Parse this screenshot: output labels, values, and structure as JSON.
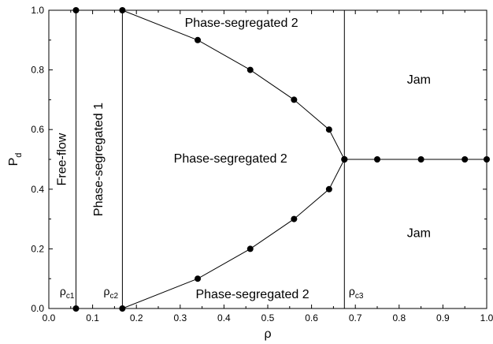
{
  "chart_data": {
    "type": "scatter",
    "xlabel": "ρ",
    "ylabel": {
      "main": "P",
      "sub": "d"
    },
    "xlim": [
      0.0,
      1.0
    ],
    "ylim": [
      0.0,
      1.0
    ],
    "x_ticks": [
      "0.0",
      "0.1",
      "0.2",
      "0.3",
      "0.4",
      "0.5",
      "0.6",
      "0.7",
      "0.8",
      "0.9",
      "1.0"
    ],
    "y_ticks": [
      "0.0",
      "0.2",
      "0.4",
      "0.6",
      "0.8",
      "1.0"
    ],
    "grid": false,
    "vertical_lines": [
      0.062,
      0.168,
      0.675
    ],
    "critical_labels": [
      {
        "main": "ρ",
        "sub": "c1",
        "x": 0.025,
        "y": 0.045
      },
      {
        "main": "ρ",
        "sub": "c2",
        "x": 0.125,
        "y": 0.045
      },
      {
        "main": "ρ",
        "sub": "c3",
        "x": 0.685,
        "y": 0.045
      }
    ],
    "series": [
      {
        "points": [
          [
            0.062,
            1.0
          ],
          [
            0.168,
            1.0
          ],
          [
            0.34,
            0.9
          ],
          [
            0.46,
            0.8
          ],
          [
            0.56,
            0.7
          ],
          [
            0.64,
            0.6
          ],
          [
            0.675,
            0.5
          ]
        ]
      },
      {
        "points": [
          [
            0.062,
            0.0
          ],
          [
            0.168,
            0.0
          ],
          [
            0.34,
            0.1
          ],
          [
            0.46,
            0.2
          ],
          [
            0.56,
            0.3
          ],
          [
            0.64,
            0.4
          ],
          [
            0.675,
            0.5
          ]
        ]
      },
      {
        "points": [
          [
            0.675,
            0.5
          ],
          [
            0.75,
            0.5
          ],
          [
            0.85,
            0.5
          ],
          [
            0.95,
            0.5
          ],
          [
            1.0,
            0.5
          ]
        ]
      }
    ],
    "region_labels": [
      {
        "text": "Free-flow",
        "x": 0.031,
        "y": 0.5,
        "rotate": true
      },
      {
        "text": "Phase-segregated 1",
        "x": 0.115,
        "y": 0.5,
        "rotate": true
      },
      {
        "text": "Phase-segregated 2",
        "x": 0.415,
        "y": 0.5,
        "rotate": false
      },
      {
        "text": "Phase-segregated 2",
        "x": 0.44,
        "y": 0.955,
        "rotate": false
      },
      {
        "text": "Phase-segregated 2",
        "x": 0.465,
        "y": 0.045,
        "rotate": false
      },
      {
        "text": "Jam",
        "x": 0.845,
        "y": 0.765,
        "rotate": false
      },
      {
        "text": "Jam",
        "x": 0.845,
        "y": 0.25,
        "rotate": false
      }
    ]
  }
}
